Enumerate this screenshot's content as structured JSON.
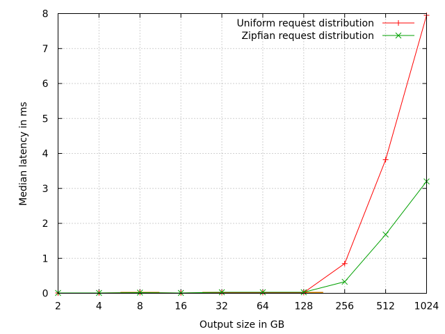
{
  "chart_data": {
    "type": "line",
    "xlabel": "Output size in GB",
    "ylabel": "Median latency in ms",
    "categories": [
      "2",
      "4",
      "8",
      "16",
      "32",
      "64",
      "128",
      "256",
      "512",
      "1024"
    ],
    "ylim": [
      0,
      8
    ],
    "yticks": [
      "0",
      "1",
      "2",
      "3",
      "4",
      "5",
      "6",
      "7",
      "8"
    ],
    "grid": true,
    "legend_position": "top-right",
    "series": [
      {
        "name": "Uniform request distribution",
        "color": "#ff0000",
        "marker": "plus",
        "values": [
          0.01,
          0.01,
          0.02,
          0.01,
          0.02,
          0.02,
          0.02,
          0.85,
          3.82,
          7.95
        ]
      },
      {
        "name": "Zipfian request distribution",
        "color": "#00a000",
        "marker": "cross",
        "values": [
          0.01,
          0.01,
          0.02,
          0.01,
          0.03,
          0.03,
          0.03,
          0.33,
          1.68,
          3.2
        ]
      }
    ],
    "annotation_bars": {
      "color": "#d08000",
      "ranges": [
        [
          "8",
          "8"
        ],
        [
          "32",
          "32"
        ],
        [
          "128",
          "128"
        ]
      ]
    }
  }
}
